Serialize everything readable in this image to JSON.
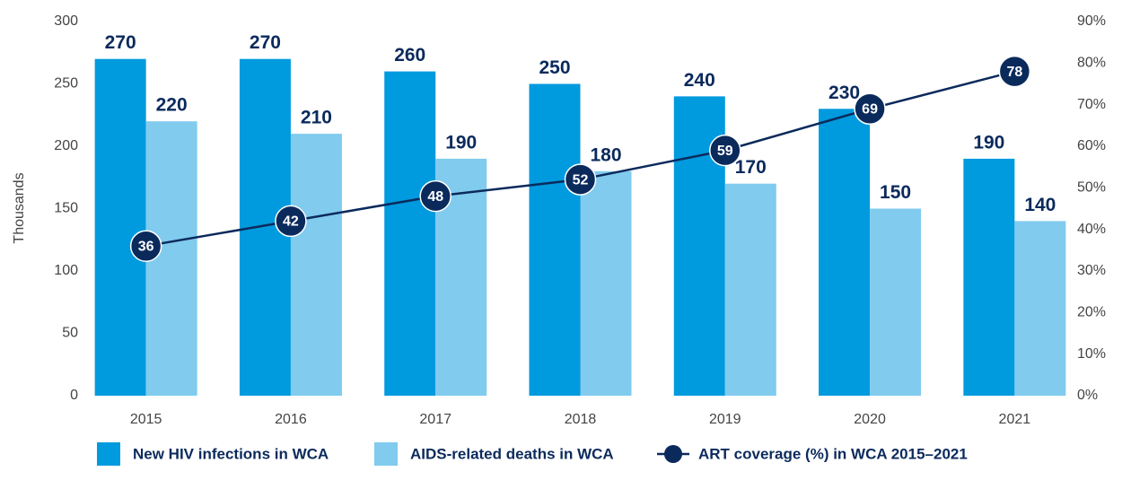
{
  "chart_data": {
    "type": "bar_line",
    "y_label": "Thousands",
    "categories": [
      "2015",
      "2016",
      "2017",
      "2018",
      "2019",
      "2020",
      "2021"
    ],
    "series": [
      {
        "name": "New HIV infections in WCA",
        "color": "#009ade",
        "type": "bar",
        "values": [
          270,
          270,
          260,
          250,
          240,
          230,
          190
        ]
      },
      {
        "name": "AIDS-related deaths in WCA",
        "color": "#80cbee",
        "type": "bar",
        "values": [
          220,
          210,
          190,
          180,
          170,
          150,
          140
        ]
      },
      {
        "name": "ART coverage (%) in WCA 2015–2021",
        "color": "#0b2a5c",
        "type": "line",
        "axis": "y2",
        "values": [
          36,
          42,
          48,
          52,
          59,
          69,
          78
        ]
      }
    ],
    "ylim": [
      0,
      300
    ],
    "yticks": [
      0,
      50,
      100,
      150,
      200,
      250,
      300
    ],
    "y2lim": [
      0,
      90
    ],
    "y2ticks": [
      {
        "value": 0,
        "label": "0%"
      },
      {
        "value": 10,
        "label": "10%"
      },
      {
        "value": 20,
        "label": "20%"
      },
      {
        "value": 30,
        "label": "30%"
      },
      {
        "value": 40,
        "label": "40%"
      },
      {
        "value": 50,
        "label": "50%"
      },
      {
        "value": 60,
        "label": "60%"
      },
      {
        "value": 70,
        "label": "70%"
      },
      {
        "value": 80,
        "label": "80%"
      },
      {
        "value": 90,
        "label": "90%"
      }
    ],
    "grid": false,
    "legend": "bottom"
  }
}
